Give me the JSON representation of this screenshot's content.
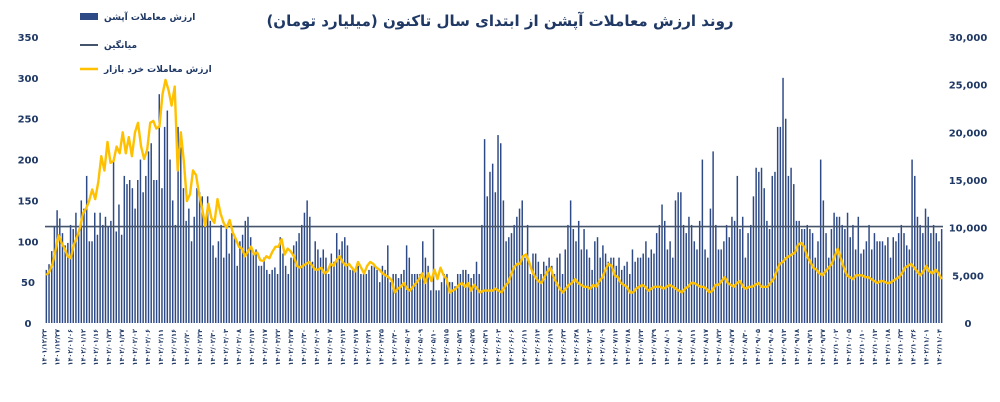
{
  "chart_data": {
    "type": "bar",
    "title": "روند ارزش معاملات آپشن از ابتدای سال تاکنون (میلیارد تومان)",
    "left_axis": {
      "ylim": [
        0,
        350
      ],
      "ticks": [
        "0",
        "50",
        "100",
        "150",
        "200",
        "250",
        "300",
        "350"
      ],
      "tick_values": [
        0,
        50,
        100,
        150,
        200,
        250,
        300,
        350
      ]
    },
    "right_axis": {
      "ylim": [
        0,
        30000
      ],
      "ticks": [
        "0",
        "5,000",
        "10,000",
        "15,000",
        "20,000",
        "25,000",
        "30,000"
      ],
      "tick_values": [
        0,
        5000,
        10000,
        15000,
        20000,
        25000,
        30000
      ]
    },
    "legend": [
      {
        "label": "ارزش معاملات آپشن",
        "kind": "bar"
      },
      {
        "label": "میانگین",
        "kind": "line"
      },
      {
        "label": "ارزش معاملات خرد بازار",
        "kind": "line"
      }
    ],
    "colors": {
      "bars": "#2e4a86",
      "average": "#44546a",
      "retail": "#ffc000",
      "text": "#1f3864"
    },
    "average_value": 118,
    "x_labels": [
      "۱۴۰۱/۱۲/۲۳",
      "۱۴۰۱/۱۲/۲۷",
      "۱۴۰۲/۰۱/۰۶",
      "۱۴۰۲/۰۱/۱۲",
      "۱۴۰۲/۰۱/۱۶",
      "۱۴۰۲/۰۱/۲۲",
      "۱۴۰۲/۰۱/۲۷",
      "۱۴۰۲/۰۲/۰۲",
      "۱۴۰۲/۰۲/۰۶",
      "۱۴۰۲/۰۲/۱۱",
      "۱۴۰۲/۰۲/۱۶",
      "۱۴۰۲/۰۲/۲۰",
      "۱۴۰۲/۰۲/۲۴",
      "۱۴۰۲/۰۲/۳۰",
      "۱۴۰۲/۰۳/۰۳",
      "۱۴۰۲/۰۳/۰۸",
      "۱۴۰۲/۰۳/۱۳",
      "۱۴۰۲/۰۳/۱۷",
      "۱۴۰۲/۰۳/۲۲",
      "۱۴۰۲/۰۳/۲۷",
      "۱۴۰۲/۰۳/۳۰",
      "۱۴۰۲/۰۴/۰۴",
      "۱۴۰۲/۰۴/۰۷",
      "۱۴۰۲/۰۴/۱۲",
      "۱۴۰۲/۰۴/۱۷",
      "۱۴۰۲/۰۴/۲۱",
      "۱۴۰۲/۰۴/۲۵",
      "۱۴۰۲/۰۴/۳۰",
      "۱۴۰۲/۰۵/۰۴",
      "۱۴۰۲/۰۵/۰۹",
      "۱۴۰۲/۰۵/۱۰",
      "۱۴۰۲/۰۵/۱۵",
      "۱۴۰۲/۰۵/۲۱",
      "۱۴۰۲/۰۵/۲۵",
      "۱۴۰۲/۰۵/۳۱",
      "۱۴۰۲/۰۶/۰۳",
      "۱۴۰۲/۰۶/۰۶",
      "۱۴۰۲/۰۶/۱۱",
      "۱۴۰۲/۰۶/۱۴",
      "۱۴۰۲/۰۶/۱۹",
      "۱۴۰۲/۰۶/۲۳",
      "۱۴۰۲/۰۶/۲۸",
      "۱۴۰۲/۰۷/۰۳",
      "۱۴۰۲/۰۷/۰۹",
      "۱۴۰۲/۰۷/۱۳",
      "۱۴۰۲/۰۷/۱۸",
      "۱۴۰۲/۰۷/۲۳",
      "۱۴۰۲/۰۷/۲۹",
      "۱۴۰۲/۰۸/۰۱",
      "۱۴۰۲/۰۸/۰۶",
      "۱۴۰۲/۰۸/۱۱",
      "۱۴۰۲/۰۸/۱۷",
      "۱۴۰۲/۰۸/۲۲",
      "۱۴۰۲/۰۸/۲۷",
      "۱۴۰۲/۰۸/۳۰",
      "۱۴۰۲/۰۹/۰۵",
      "۱۴۰۲/۰۹/۰۸",
      "۱۴۰۲/۰۹/۱۳",
      "۱۴۰۲/۰۹/۱۸",
      "۱۴۰۲/۰۹/۲۱",
      "۱۴۰۲/۰۹/۲۷",
      "۱۴۰۲/۱۰/۰۲",
      "۱۴۰۲/۱۰/۰۵",
      "۱۴۰۲/۱۰/۱۰",
      "۱۴۰۲/۱۰/۱۳",
      "۱۴۰۲/۱۰/۱۸",
      "۱۴۰۲/۱۰/۲۳",
      "۱۴۰۲/۱۰/۲۶",
      "۱۴۰۲/۱۱/۰۱",
      "۱۴۰۲/۱۱/۰۴"
    ],
    "bar_values": [
      65,
      72,
      88,
      118,
      138,
      128,
      110,
      95,
      98,
      120,
      115,
      135,
      110,
      150,
      140,
      180,
      100,
      100,
      135,
      108,
      135,
      120,
      130,
      118,
      125,
      200,
      112,
      145,
      108,
      180,
      170,
      175,
      165,
      140,
      175,
      200,
      160,
      180,
      210,
      220,
      175,
      175,
      280,
      165,
      240,
      260,
      200,
      150,
      120,
      240,
      215,
      165,
      125,
      140,
      100,
      130,
      165,
      160,
      155,
      120,
      155,
      125,
      95,
      80,
      100,
      120,
      80,
      120,
      85,
      110,
      105,
      70,
      100,
      108,
      125,
      130,
      105,
      85,
      90,
      70,
      70,
      80,
      65,
      60,
      65,
      68,
      60,
      105,
      85,
      70,
      60,
      80,
      95,
      100,
      110,
      120,
      135,
      150,
      130,
      75,
      100,
      90,
      80,
      90,
      80,
      60,
      85,
      75,
      110,
      90,
      100,
      105,
      95,
      65,
      65,
      65,
      70,
      60,
      60,
      60,
      65,
      70,
      70,
      65,
      50,
      70,
      65,
      95,
      50,
      60,
      60,
      55,
      60,
      65,
      95,
      80,
      60,
      60,
      60,
      60,
      100,
      80,
      70,
      40,
      115,
      40,
      40,
      50,
      60,
      60,
      50,
      50,
      45,
      60,
      60,
      65,
      65,
      60,
      55,
      60,
      75,
      60,
      120,
      225,
      155,
      185,
      195,
      160,
      230,
      220,
      150,
      100,
      105,
      110,
      120,
      130,
      140,
      150,
      80,
      120,
      60,
      85,
      85,
      75,
      60,
      75,
      70,
      80,
      70,
      60,
      80,
      85,
      60,
      90,
      120,
      150,
      115,
      100,
      125,
      90,
      115,
      90,
      80,
      65,
      100,
      105,
      80,
      95,
      85,
      75,
      80,
      80,
      70,
      80,
      65,
      70,
      75,
      60,
      90,
      75,
      80,
      80,
      85,
      100,
      80,
      90,
      85,
      110,
      120,
      145,
      125,
      90,
      100,
      80,
      150,
      160,
      160,
      120,
      110,
      130,
      120,
      100,
      90,
      125,
      200,
      90,
      80,
      140,
      210,
      120,
      90,
      90,
      100,
      120,
      105,
      130,
      125,
      180,
      115,
      130,
      80,
      110,
      120,
      155,
      190,
      185,
      190,
      165,
      125,
      115,
      180,
      185,
      240,
      240,
      300,
      250,
      180,
      190,
      170,
      125,
      125,
      115,
      115,
      120,
      115,
      110,
      80,
      100,
      200,
      150,
      110,
      80,
      115,
      135,
      130,
      130,
      120,
      115,
      135,
      105,
      120,
      90,
      130,
      85,
      90,
      100,
      120,
      90,
      110,
      100,
      100,
      100,
      95,
      105,
      80,
      105,
      100,
      110,
      120,
      110,
      95,
      90,
      200,
      180,
      130,
      120,
      110,
      140,
      130,
      110,
      120,
      110,
      100,
      115
    ],
    "retail_values": [
      5000,
      5400,
      6200,
      7600,
      9200,
      8400,
      7800,
      7000,
      6800,
      8200,
      9000,
      10000,
      11500,
      12000,
      12800,
      14000,
      13000,
      14800,
      17500,
      16000,
      19000,
      16800,
      17000,
      18500,
      17800,
      20000,
      17800,
      19500,
      17500,
      20000,
      21000,
      18500,
      17200,
      18200,
      21000,
      21200,
      20400,
      20600,
      24000,
      25500,
      24400,
      22800,
      24800,
      16000,
      20000,
      17000,
      12800,
      13500,
      16000,
      15500,
      13500,
      12000,
      10200,
      12500,
      11000,
      10500,
      13000,
      11500,
      10500,
      10000,
      10800,
      9500,
      8800,
      8000,
      7800,
      7000,
      7500,
      8000,
      7200,
      7400,
      6600,
      6500,
      7000,
      6800,
      7500,
      8000,
      8000,
      8800,
      7200,
      7800,
      7500,
      7000,
      6000,
      5800,
      6000,
      6200,
      6400,
      6000,
      5600,
      5600,
      5800,
      5200,
      5400,
      6200,
      6000,
      6600,
      7000,
      6400,
      6000,
      6200,
      5800,
      5400,
      6400,
      5800,
      5200,
      6000,
      6400,
      6200,
      5800,
      5600,
      5200,
      5000,
      4800,
      4500,
      3200,
      3600,
      3800,
      4200,
      3600,
      3400,
      3800,
      4200,
      4600,
      5200,
      4200,
      5200,
      4400,
      5600,
      4600,
      5800,
      5000,
      4600,
      3200,
      3400,
      3600,
      4000,
      4200,
      3800,
      4200,
      3400,
      4000,
      3600,
      3200,
      3400,
      3400,
      3400,
      3400,
      3600,
      3400,
      3200,
      3800,
      4200,
      5000,
      5800,
      6200,
      6200,
      7000,
      7200,
      6400,
      5400,
      4800,
      4400,
      4200,
      4800,
      5400,
      5800,
      4800,
      4200,
      3600,
      3200,
      3600,
      4000,
      4200,
      4600,
      4200,
      4000,
      3800,
      3800,
      3600,
      4000,
      3800,
      4400,
      4800,
      5600,
      6200,
      6000,
      5000,
      4800,
      4200,
      4000,
      3800,
      3200,
      3200,
      3600,
      3800,
      4000,
      3800,
      3400,
      3600,
      3800,
      3800,
      3800,
      3600,
      3800,
      4000,
      3800,
      3600,
      3400,
      3200,
      3600,
      3800,
      4200,
      4200,
      4000,
      3800,
      3800,
      3600,
      3200,
      3400,
      4000,
      4000,
      4400,
      4800,
      4200,
      4000,
      3800,
      4200,
      4400,
      3800,
      3600,
      3800,
      3800,
      4000,
      4200,
      3800,
      3800,
      3800,
      4200,
      4600,
      5400,
      6200,
      6400,
      6800,
      7000,
      7200,
      7400,
      8200,
      8400,
      8000,
      7000,
      6400,
      5800,
      5600,
      5200,
      5000,
      5400,
      5800,
      6200,
      7000,
      7800,
      6800,
      5800,
      5000,
      4800,
      4600,
      5000,
      5000,
      5000,
      4800,
      4800,
      4600,
      4400,
      4200,
      4400,
      4400,
      4200,
      4200,
      4400,
      4600,
      4800,
      5200,
      5800,
      6000,
      6200,
      5800,
      5400,
      5000,
      5400,
      6000,
      5400,
      5200,
      5600,
      5200,
      4600
    ]
  }
}
